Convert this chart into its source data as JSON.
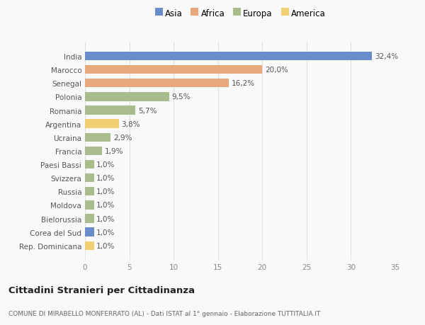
{
  "countries": [
    "India",
    "Marocco",
    "Senegal",
    "Polonia",
    "Romania",
    "Argentina",
    "Ucraina",
    "Francia",
    "Paesi Bassi",
    "Svizzera",
    "Russia",
    "Moldova",
    "Bielorussia",
    "Corea del Sud",
    "Rep. Dominicana"
  ],
  "values": [
    32.4,
    20.0,
    16.2,
    9.5,
    5.7,
    3.8,
    2.9,
    1.9,
    1.0,
    1.0,
    1.0,
    1.0,
    1.0,
    1.0,
    1.0
  ],
  "labels": [
    "32,4%",
    "20,0%",
    "16,2%",
    "9,5%",
    "5,7%",
    "3,8%",
    "2,9%",
    "1,9%",
    "1,0%",
    "1,0%",
    "1,0%",
    "1,0%",
    "1,0%",
    "1,0%",
    "1,0%"
  ],
  "continents": [
    "Asia",
    "Africa",
    "Africa",
    "Europa",
    "Europa",
    "America",
    "Europa",
    "Europa",
    "Europa",
    "Europa",
    "Europa",
    "Europa",
    "Europa",
    "Asia",
    "America"
  ],
  "colors": {
    "Asia": "#6b8cca",
    "Africa": "#e8a87c",
    "Europa": "#a8bc8c",
    "America": "#f0d070"
  },
  "legend_order": [
    "Asia",
    "Africa",
    "Europa",
    "America"
  ],
  "title": "Cittadini Stranieri per Cittadinanza",
  "subtitle": "COMUNE DI MIRABELLO MONFERRATO (AL) - Dati ISTAT al 1° gennaio - Elaborazione TUTTITALIA.IT",
  "xlim": [
    0,
    35
  ],
  "xticks": [
    0,
    5,
    10,
    15,
    20,
    25,
    30,
    35
  ],
  "background_color": "#f9f9f9",
  "grid_color": "#e0e0e0"
}
